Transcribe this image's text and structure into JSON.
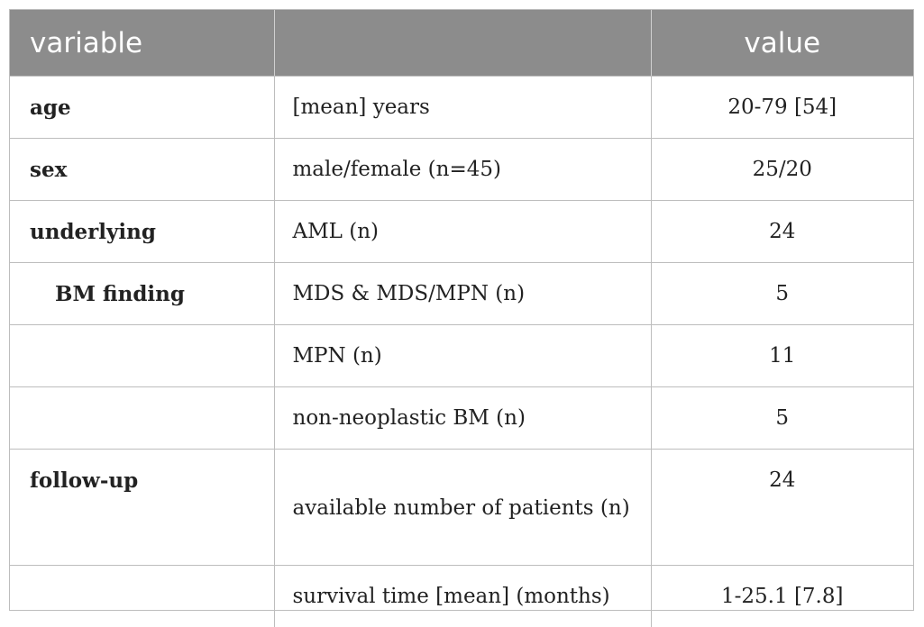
{
  "table": {
    "headers": {
      "variable": "variable",
      "middle": "",
      "value": "value"
    },
    "rows": [
      {
        "variable": "age",
        "description": "[mean] years",
        "value": "20-79 [54]"
      },
      {
        "variable": "sex",
        "description": "male/female (n=45)",
        "value": "25/20"
      },
      {
        "variable": "underlying",
        "description": "AML (n)",
        "value": "24"
      },
      {
        "variable": "BM finding",
        "description": "MDS & MDS/MPN (n)",
        "value": "5"
      },
      {
        "variable": "",
        "description": "MPN (n)",
        "value": "11"
      },
      {
        "variable": "",
        "description": "non-neoplastic BM (n)",
        "value": "5"
      },
      {
        "variable": "follow-up",
        "description": "available number of patients (n)",
        "value": "24"
      },
      {
        "variable": "",
        "description": "survival time [mean] (months)",
        "value": "1-25.1 [7.8]"
      }
    ]
  }
}
